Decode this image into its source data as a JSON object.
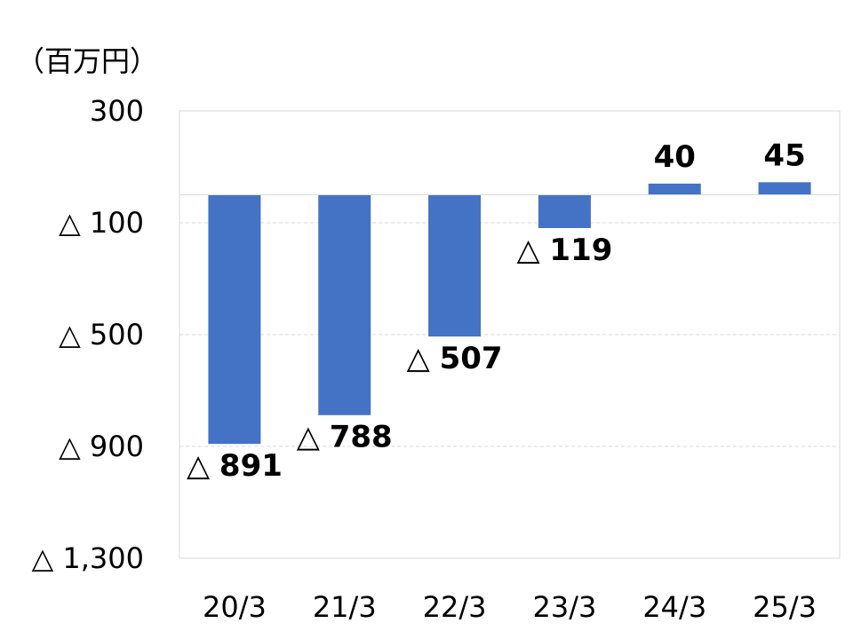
{
  "unit_label": "（百万円）",
  "colors": {
    "bar": "#4472C4",
    "plot_border": "#D9D9D9",
    "gridline": "#D9D9D9",
    "zero_line": "#D9D9D9",
    "text": "#000000"
  },
  "chart_data": {
    "type": "bar",
    "categories": [
      "20/3",
      "21/3",
      "22/3",
      "23/3",
      "24/3",
      "25/3"
    ],
    "values": [
      -891,
      -788,
      -507,
      -119,
      40,
      45
    ],
    "data_labels": [
      "△ 891",
      "△ 788",
      "△ 507",
      "△ 119",
      "40",
      "45"
    ],
    "y_ticks": [
      {
        "value": 300,
        "label": "300"
      },
      {
        "value": -100,
        "label": "△ 100"
      },
      {
        "value": -500,
        "label": "△ 500"
      },
      {
        "value": -900,
        "label": "△ 900"
      },
      {
        "value": -1300,
        "label": "△ 1,300"
      }
    ],
    "ylim": [
      -1300,
      300
    ],
    "grid": true,
    "negative_marker": "△"
  }
}
